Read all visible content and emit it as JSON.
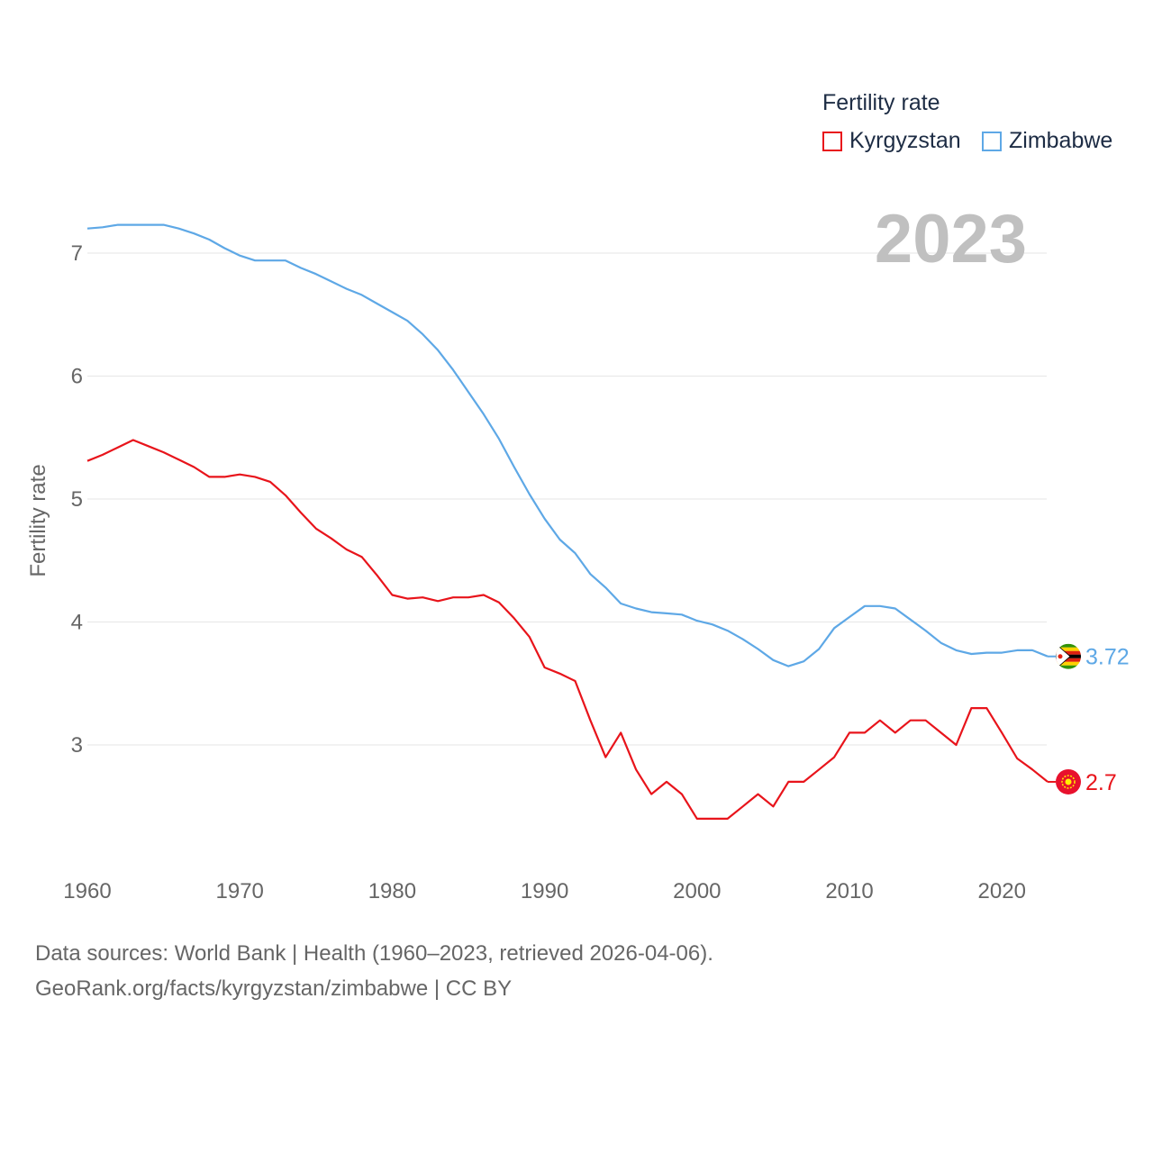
{
  "legend": {
    "title": "Fertility rate",
    "items": [
      {
        "label": "Kyrgyzstan",
        "color": "#e8141b"
      },
      {
        "label": "Zimbabwe",
        "color": "#5ea8e6"
      }
    ]
  },
  "year_overlay": "2023",
  "footer": {
    "line1": "Data sources: World Bank | Health (1960–2023, retrieved 2026-04-06).",
    "line2": "GeoRank.org/facts/kyrgyzstan/zimbabwe | CC BY"
  },
  "chart_data": {
    "type": "line",
    "title": "Fertility rate",
    "xlabel": "",
    "ylabel": "Fertility rate",
    "xlim": [
      1960,
      2023
    ],
    "ylim": [
      2.0,
      7.5
    ],
    "x_ticks": [
      1960,
      1970,
      1980,
      1990,
      2000,
      2010,
      2020
    ],
    "y_ticks": [
      3,
      4,
      5,
      6,
      7
    ],
    "grid": true,
    "x": [
      1960,
      1961,
      1962,
      1963,
      1964,
      1965,
      1966,
      1967,
      1968,
      1969,
      1970,
      1971,
      1972,
      1973,
      1974,
      1975,
      1976,
      1977,
      1978,
      1979,
      1980,
      1981,
      1982,
      1983,
      1984,
      1985,
      1986,
      1987,
      1988,
      1989,
      1990,
      1991,
      1992,
      1993,
      1994,
      1995,
      1996,
      1997,
      1998,
      1999,
      2000,
      2001,
      2002,
      2003,
      2004,
      2005,
      2006,
      2007,
      2008,
      2009,
      2010,
      2011,
      2012,
      2013,
      2014,
      2015,
      2016,
      2017,
      2018,
      2019,
      2020,
      2021,
      2022,
      2023
    ],
    "series": [
      {
        "name": "Kyrgyzstan",
        "color": "#e8141b",
        "end_label": "2.7",
        "values": [
          5.31,
          5.36,
          5.42,
          5.48,
          5.43,
          5.38,
          5.32,
          5.26,
          5.18,
          5.18,
          5.2,
          5.18,
          5.14,
          5.03,
          4.89,
          4.76,
          4.68,
          4.59,
          4.53,
          4.38,
          4.22,
          4.19,
          4.2,
          4.17,
          4.2,
          4.2,
          4.22,
          4.16,
          4.03,
          3.88,
          3.63,
          3.58,
          3.52,
          3.2,
          2.9,
          3.1,
          2.8,
          2.6,
          2.7,
          2.6,
          2.4,
          2.4,
          2.4,
          2.5,
          2.6,
          2.5,
          2.7,
          2.7,
          2.8,
          2.9,
          3.1,
          3.1,
          3.2,
          3.1,
          3.2,
          3.2,
          3.1,
          3.0,
          3.3,
          3.3,
          3.1,
          2.89,
          2.8,
          2.7
        ]
      },
      {
        "name": "Zimbabwe",
        "color": "#5ea8e6",
        "end_label": "3.72",
        "values": [
          7.2,
          7.21,
          7.23,
          7.23,
          7.23,
          7.23,
          7.2,
          7.16,
          7.11,
          7.04,
          6.98,
          6.94,
          6.94,
          6.94,
          6.88,
          6.83,
          6.77,
          6.71,
          6.66,
          6.59,
          6.52,
          6.45,
          6.34,
          6.21,
          6.05,
          5.87,
          5.69,
          5.49,
          5.26,
          5.04,
          4.84,
          4.67,
          4.56,
          4.39,
          4.28,
          4.15,
          4.11,
          4.08,
          4.07,
          4.06,
          4.01,
          3.98,
          3.93,
          3.86,
          3.78,
          3.69,
          3.64,
          3.68,
          3.78,
          3.95,
          4.04,
          4.13,
          4.13,
          4.11,
          4.02,
          3.93,
          3.83,
          3.77,
          3.74,
          3.75,
          3.75,
          3.77,
          3.77,
          3.72
        ]
      }
    ]
  }
}
